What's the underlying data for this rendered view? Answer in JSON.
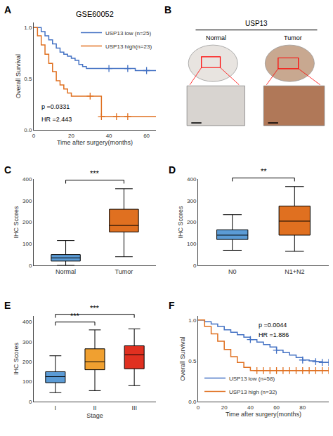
{
  "chart_data": [
    {
      "type": "survival",
      "title": "GSE60052",
      "xlabel": "Time after surgery(months)",
      "ylabel": "Overall Survival",
      "xlim": [
        0,
        65
      ],
      "xticks": [
        0,
        20,
        40,
        60
      ],
      "ylim": [
        0,
        1.05
      ],
      "yticks": [
        {
          "value": 0,
          "label": "0.0"
        },
        0.5,
        {
          "value": 1,
          "label": "1.0"
        }
      ],
      "grid": false,
      "legend": "upper right",
      "annotations": [
        {
          "text": "A"
        },
        {
          "text": "p =0.0331"
        },
        {
          "text": "HR =2.443"
        }
      ],
      "x": [
        0,
        2,
        4,
        6,
        8,
        10,
        12,
        14,
        16,
        18,
        20,
        22,
        24,
        26,
        28,
        30,
        32,
        34,
        36,
        38,
        40,
        42,
        44,
        46,
        48,
        50,
        52,
        54,
        56,
        58,
        60,
        62,
        65
      ],
      "series": [
        {
          "name": "USP13 low (n=25)",
          "color": "#4472C4",
          "values": [
            1.0,
            1.0,
            0.96,
            0.92,
            0.88,
            0.84,
            0.8,
            0.76,
            0.74,
            0.72,
            0.7,
            0.68,
            0.64,
            0.62,
            0.6,
            0.6,
            0.6,
            0.6,
            0.6,
            0.6,
            0.6,
            0.6,
            0.6,
            0.6,
            0.6,
            0.6,
            0.6,
            0.58,
            0.58,
            0.58,
            0.58,
            0.58,
            0.58
          ],
          "censor_x": [
            40,
            50,
            60
          ],
          "censor_values": [
            0.6,
            0.6,
            0.58
          ]
        },
        {
          "name": "USP13 high(n=23)",
          "color": "#E07020",
          "values": [
            1.0,
            0.92,
            0.83,
            0.74,
            0.65,
            0.57,
            0.48,
            0.44,
            0.4,
            0.36,
            0.33,
            0.33,
            0.33,
            0.33,
            0.33,
            0.33,
            0.33,
            0.33,
            0.13,
            0.13,
            0.13,
            0.13,
            0.13,
            0.13,
            0.13,
            0.13,
            0.13,
            0.13,
            0.13,
            0.13,
            0.13,
            0.13,
            0.13
          ],
          "censor_x": [
            30,
            36,
            44,
            50
          ],
          "censor_values": [
            0.33,
            0.13,
            0.13,
            0.13
          ]
        }
      ]
    },
    {
      "type": "schematic",
      "title": "USP13",
      "tick_labels": false,
      "color": "red",
      "annotations": [
        {
          "text": "B"
        }
      ],
      "series": [
        {
          "name": "Normal",
          "colors": [
            "#e8e4e0",
            "#d8d4d0"
          ]
        },
        {
          "name": "Tumor",
          "colors": [
            "#c8a890",
            "#b07858"
          ]
        }
      ]
    },
    {
      "type": "box",
      "ylabel": "IHC Scores",
      "categories": [
        "Normal",
        "Tumor"
      ],
      "colors": [
        "#5B9BD5",
        "#E07020"
      ],
      "boxes": [
        {
          "median": 35,
          "q1": 20,
          "q3": 50,
          "whislo": 0,
          "whishi": 115
        },
        {
          "median": 185,
          "q1": 155,
          "q3": 260,
          "whislo": 40,
          "whishi": 355
        }
      ],
      "ylim": [
        0,
        400
      ],
      "yticks": [
        0,
        100,
        200,
        300,
        400
      ],
      "grid": false,
      "annotations": [
        {
          "text": "C"
        },
        {
          "text": "***",
          "pair": [
            0,
            1
          ]
        }
      ]
    },
    {
      "type": "box",
      "ylabel": "IHC Scores",
      "categories": [
        "N0",
        "N1+N2"
      ],
      "colors": [
        "#5B9BD5",
        "#E07020"
      ],
      "boxes": [
        {
          "median": 140,
          "q1": 120,
          "q3": 165,
          "whislo": 70,
          "whishi": 235
        },
        {
          "median": 205,
          "q1": 140,
          "q3": 275,
          "whislo": 65,
          "whishi": 365
        }
      ],
      "ylim": [
        0,
        400
      ],
      "yticks": [
        0,
        100,
        200,
        300,
        400
      ],
      "grid": false,
      "annotations": [
        {
          "text": "D"
        },
        {
          "text": "**",
          "pair": [
            0,
            1
          ]
        }
      ]
    },
    {
      "type": "box",
      "ylabel": "IHC Scores",
      "xlabel": "Stage",
      "categories": [
        "I",
        "II",
        "III"
      ],
      "colors": [
        "#5B9BD5",
        "#F0A030",
        "#E03020"
      ],
      "boxes": [
        {
          "median": 125,
          "q1": 95,
          "q3": 150,
          "whislo": 45,
          "whishi": 230
        },
        {
          "median": 200,
          "q1": 160,
          "q3": 265,
          "whislo": 55,
          "whishi": 360
        },
        {
          "median": 235,
          "q1": 165,
          "q3": 280,
          "whislo": 80,
          "whishi": 365
        }
      ],
      "ylim": [
        0,
        430
      ],
      "yticks": [
        0,
        100,
        200,
        300,
        400
      ],
      "grid": false,
      "annotations": [
        {
          "text": "E"
        },
        {
          "text": "***",
          "pair": [
            0,
            1
          ]
        },
        {
          "text": "***",
          "pair": [
            0,
            2
          ]
        }
      ]
    },
    {
      "type": "survival",
      "xlabel": "Time after surgery(months)",
      "ylabel": "Overall Survival",
      "xlim": [
        0,
        100
      ],
      "xticks": [
        0,
        20,
        40,
        60,
        80,
        100
      ],
      "ylim": [
        0,
        1.05
      ],
      "yticks": [
        {
          "value": 0,
          "label": "0.0"
        },
        0.5,
        {
          "value": 1,
          "label": "1.0"
        }
      ],
      "grid": false,
      "legend": "lower left",
      "annotations": [
        {
          "text": "F"
        },
        {
          "text": "p =0.0044"
        },
        {
          "text": "HR =1.886"
        }
      ],
      "x": [
        0,
        5,
        10,
        15,
        20,
        25,
        30,
        35,
        40,
        45,
        50,
        55,
        60,
        65,
        70,
        75,
        80,
        85,
        90,
        95,
        100
      ],
      "series": [
        {
          "name": "USP13 low (n=58)",
          "color": "#4472C4",
          "values": [
            1.0,
            0.98,
            0.95,
            0.92,
            0.88,
            0.85,
            0.82,
            0.79,
            0.76,
            0.73,
            0.7,
            0.67,
            0.63,
            0.6,
            0.57,
            0.54,
            0.51,
            0.5,
            0.49,
            0.48,
            0.48
          ],
          "censor_x": [
            40,
            60,
            80,
            90,
            95,
            100
          ],
          "censor_values": [
            0.76,
            0.63,
            0.51,
            0.49,
            0.48,
            0.48
          ]
        },
        {
          "name": "USP13 high (n=32)",
          "color": "#E07020",
          "values": [
            1.0,
            0.92,
            0.83,
            0.74,
            0.64,
            0.55,
            0.48,
            0.42,
            0.38,
            0.38,
            0.38,
            0.38,
            0.38,
            0.38,
            0.38,
            0.38,
            0.38,
            0.38,
            0.38,
            0.38,
            0.38
          ],
          "censor_x": [
            45,
            50,
            55,
            60,
            65,
            70,
            75,
            80,
            85,
            90,
            95,
            100
          ],
          "censor_values": [
            0.38,
            0.38,
            0.38,
            0.38,
            0.38,
            0.38,
            0.38,
            0.38,
            0.38,
            0.38,
            0.38,
            0.38
          ]
        }
      ]
    }
  ]
}
